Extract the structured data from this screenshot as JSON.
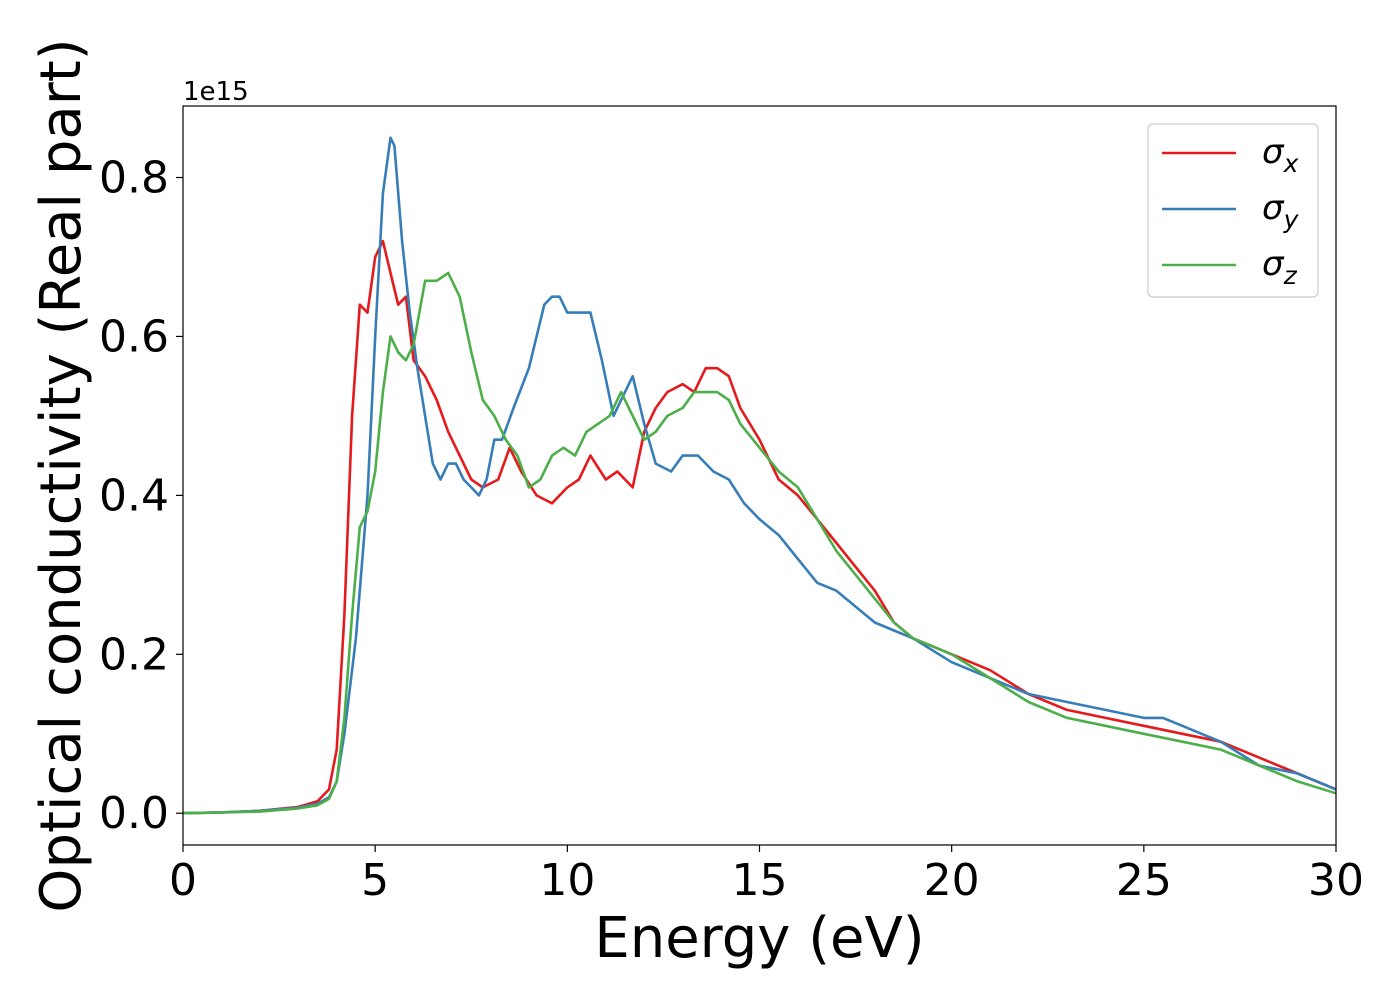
{
  "chart_data": {
    "type": "line",
    "xlabel": "Energy (eV)",
    "ylabel": "Optical conductivity (Real part)",
    "y_offset_label": "1e15",
    "xlim": [
      0,
      30
    ],
    "ylim": [
      -0.04,
      0.89
    ],
    "x_ticks": [
      0,
      5,
      10,
      15,
      20,
      25,
      30
    ],
    "x_tick_labels": [
      "0",
      "5",
      "10",
      "15",
      "20",
      "25",
      "30"
    ],
    "y_ticks": [
      0.0,
      0.2,
      0.4,
      0.6,
      0.8
    ],
    "y_tick_labels": [
      "0.0",
      "0.2",
      "0.4",
      "0.6",
      "0.8"
    ],
    "grid": false,
    "legend_position": "top-right",
    "series": [
      {
        "name": "σx",
        "legend_base": "σ",
        "legend_sub": "x",
        "color": "#e41a1c",
        "x": [
          0,
          1,
          2,
          3,
          3.5,
          3.8,
          4.0,
          4.2,
          4.4,
          4.6,
          4.8,
          5.0,
          5.2,
          5.4,
          5.6,
          5.8,
          6.0,
          6.3,
          6.6,
          6.9,
          7.2,
          7.5,
          7.8,
          8.2,
          8.5,
          8.8,
          9.2,
          9.6,
          10.0,
          10.3,
          10.6,
          11.0,
          11.3,
          11.7,
          12.0,
          12.3,
          12.6,
          13.0,
          13.3,
          13.6,
          13.9,
          14.2,
          14.5,
          15.0,
          15.5,
          16.0,
          16.5,
          17.0,
          17.5,
          18.0,
          18.5,
          19.0,
          19.5,
          20.0,
          21.0,
          22.0,
          23.0,
          24.0,
          25.0,
          26.0,
          27.0,
          28.0,
          29.0,
          30.0
        ],
        "y": [
          0.0,
          0.001,
          0.003,
          0.008,
          0.015,
          0.03,
          0.08,
          0.25,
          0.5,
          0.64,
          0.63,
          0.7,
          0.72,
          0.68,
          0.64,
          0.65,
          0.57,
          0.55,
          0.52,
          0.48,
          0.45,
          0.42,
          0.41,
          0.42,
          0.46,
          0.43,
          0.4,
          0.39,
          0.41,
          0.42,
          0.45,
          0.42,
          0.43,
          0.41,
          0.48,
          0.51,
          0.53,
          0.54,
          0.53,
          0.56,
          0.56,
          0.55,
          0.51,
          0.47,
          0.42,
          0.4,
          0.37,
          0.34,
          0.31,
          0.28,
          0.24,
          0.22,
          0.21,
          0.2,
          0.18,
          0.15,
          0.13,
          0.12,
          0.11,
          0.1,
          0.09,
          0.07,
          0.05,
          0.03
        ]
      },
      {
        "name": "σy",
        "legend_base": "σ",
        "legend_sub": "y",
        "color": "#377eb8",
        "x": [
          0,
          1,
          2,
          3,
          3.5,
          3.8,
          4.0,
          4.2,
          4.5,
          4.8,
          5.0,
          5.2,
          5.4,
          5.5,
          5.7,
          5.9,
          6.1,
          6.3,
          6.5,
          6.7,
          6.9,
          7.1,
          7.3,
          7.5,
          7.7,
          7.9,
          8.1,
          8.3,
          8.6,
          9.0,
          9.4,
          9.6,
          9.8,
          10.0,
          10.3,
          10.6,
          10.9,
          11.2,
          11.4,
          11.7,
          12.0,
          12.3,
          12.7,
          13.0,
          13.4,
          13.8,
          14.2,
          14.6,
          15.0,
          15.5,
          16.0,
          16.5,
          17.0,
          17.5,
          18.0,
          18.5,
          19.0,
          20.0,
          21.0,
          22.0,
          23.0,
          24.0,
          25.0,
          25.5,
          26.0,
          26.5,
          27.0,
          28.0,
          29.0,
          30.0
        ],
        "y": [
          0.0,
          0.001,
          0.003,
          0.007,
          0.012,
          0.02,
          0.04,
          0.1,
          0.22,
          0.4,
          0.6,
          0.78,
          0.85,
          0.84,
          0.72,
          0.63,
          0.56,
          0.5,
          0.44,
          0.42,
          0.44,
          0.44,
          0.42,
          0.41,
          0.4,
          0.42,
          0.47,
          0.47,
          0.51,
          0.56,
          0.64,
          0.65,
          0.65,
          0.63,
          0.63,
          0.63,
          0.57,
          0.5,
          0.52,
          0.55,
          0.49,
          0.44,
          0.43,
          0.45,
          0.45,
          0.43,
          0.42,
          0.39,
          0.37,
          0.35,
          0.32,
          0.29,
          0.28,
          0.26,
          0.24,
          0.23,
          0.22,
          0.19,
          0.17,
          0.15,
          0.14,
          0.13,
          0.12,
          0.12,
          0.11,
          0.1,
          0.09,
          0.06,
          0.05,
          0.03
        ]
      },
      {
        "name": "σz",
        "legend_base": "σ",
        "legend_sub": "z",
        "color": "#4daf4a",
        "x": [
          0,
          1,
          2,
          3,
          3.5,
          3.8,
          4.0,
          4.2,
          4.4,
          4.6,
          4.8,
          5.0,
          5.2,
          5.4,
          5.6,
          5.8,
          6.0,
          6.3,
          6.6,
          6.9,
          7.2,
          7.5,
          7.8,
          8.1,
          8.4,
          8.7,
          9.0,
          9.3,
          9.6,
          9.9,
          10.2,
          10.5,
          10.8,
          11.1,
          11.4,
          11.7,
          12.0,
          12.3,
          12.6,
          13.0,
          13.3,
          13.6,
          13.9,
          14.2,
          14.5,
          15.0,
          15.5,
          16.0,
          16.5,
          17.0,
          17.5,
          18.0,
          18.5,
          19.0,
          19.5,
          20.0,
          21.0,
          22.0,
          23.0,
          24.0,
          25.0,
          26.0,
          27.0,
          28.0,
          29.0,
          30.0
        ],
        "y": [
          0.0,
          0.001,
          0.002,
          0.006,
          0.01,
          0.018,
          0.04,
          0.12,
          0.25,
          0.36,
          0.38,
          0.43,
          0.53,
          0.6,
          0.58,
          0.57,
          0.59,
          0.67,
          0.67,
          0.68,
          0.65,
          0.58,
          0.52,
          0.5,
          0.47,
          0.45,
          0.41,
          0.42,
          0.45,
          0.46,
          0.45,
          0.48,
          0.49,
          0.5,
          0.53,
          0.5,
          0.47,
          0.48,
          0.5,
          0.51,
          0.53,
          0.53,
          0.53,
          0.52,
          0.49,
          0.46,
          0.43,
          0.41,
          0.37,
          0.33,
          0.3,
          0.27,
          0.24,
          0.22,
          0.21,
          0.2,
          0.17,
          0.14,
          0.12,
          0.11,
          0.1,
          0.09,
          0.08,
          0.06,
          0.04,
          0.025
        ]
      }
    ]
  }
}
